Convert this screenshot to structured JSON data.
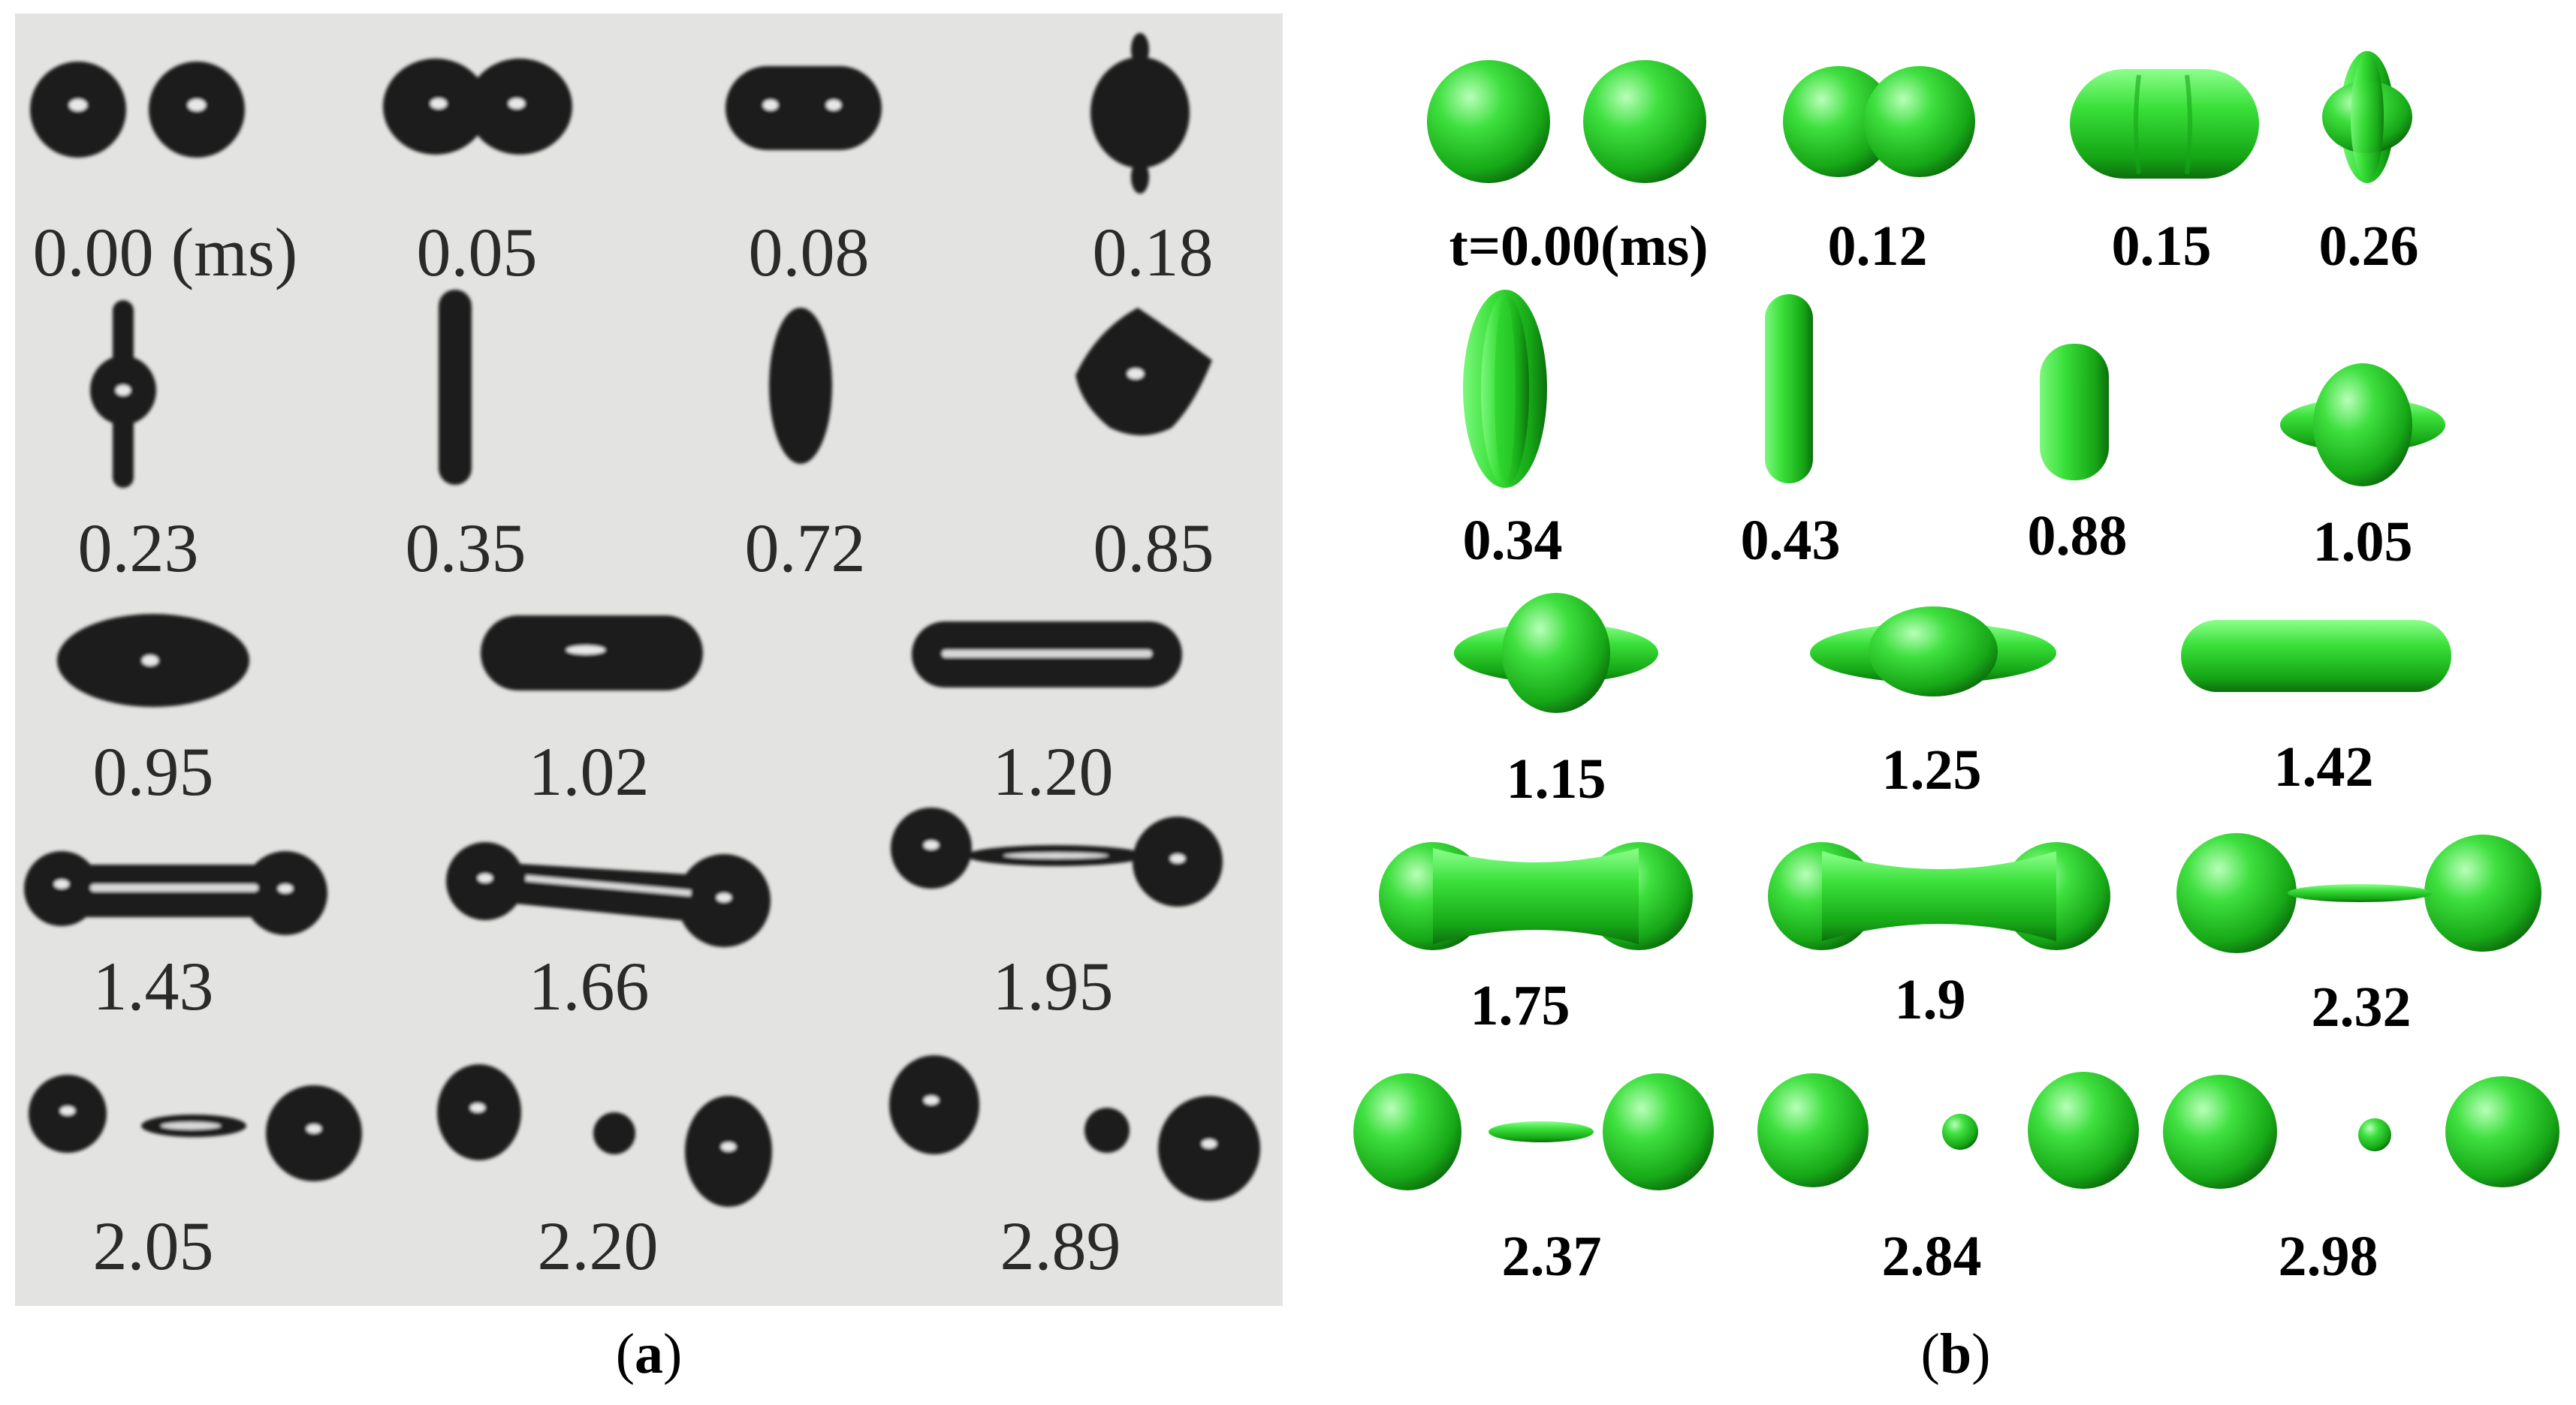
{
  "colors": {
    "panel_a_background": "#e3e3e1",
    "drop_a": "#1f1f1f",
    "drop_b": "#22c422",
    "drop_b_dark": "#0e6e0e",
    "drop_b_light": "#9bff9b"
  },
  "panel_a": {
    "caption": "a",
    "frames": [
      "0.00 (ms)",
      "0.05",
      "0.08",
      "0.18",
      "0.23",
      "0.35",
      "0.72",
      "0.85",
      "0.95",
      "1.02",
      "1.20",
      "1.43",
      "1.66",
      "1.95",
      "2.05",
      "2.20",
      "2.89"
    ]
  },
  "panel_b": {
    "caption": "b",
    "frames": [
      "t=0.00(ms)",
      "0.12",
      "0.15",
      "0.26",
      "0.34",
      "0.43",
      "0.88",
      "1.05",
      "1.15",
      "1.25",
      "1.42",
      "1.75",
      "1.9",
      "2.32",
      "2.37",
      "2.84",
      "2.98"
    ]
  }
}
